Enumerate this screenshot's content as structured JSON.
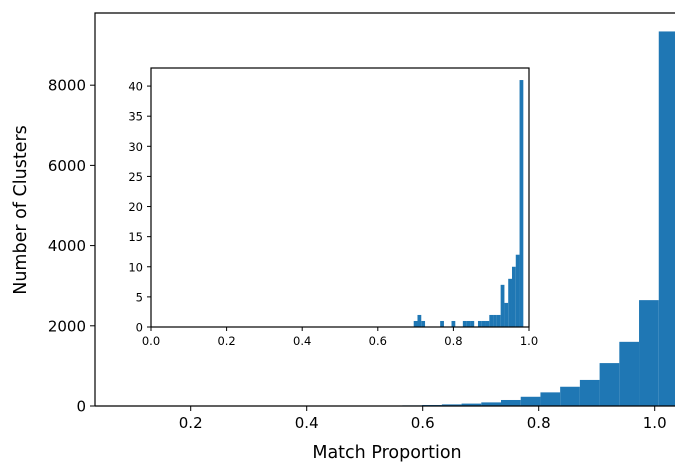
{
  "chart_data": [
    {
      "type": "bar",
      "title": "",
      "xlabel": "Match Proportion",
      "ylabel": "Number of Clusters",
      "xlim": [
        0.035,
        1.035
      ],
      "ylim": [
        0,
        9800
      ],
      "xticks": [
        0.2,
        0.4,
        0.6,
        0.8,
        1.0
      ],
      "xtick_labels": [
        "0.2",
        "0.4",
        "0.6",
        "0.8",
        "1.0"
      ],
      "yticks": [
        0,
        2000,
        4000,
        6000,
        8000
      ],
      "ytick_labels": [
        "0",
        "2000",
        "4000",
        "6000",
        "8000"
      ],
      "bar_color": "#1f77b4",
      "bins": [
        {
          "x0": 0.463,
          "x1": 0.497,
          "value": 3
        },
        {
          "x0": 0.497,
          "x1": 0.531,
          "value": 6
        },
        {
          "x0": 0.531,
          "x1": 0.565,
          "value": 10
        },
        {
          "x0": 0.565,
          "x1": 0.599,
          "value": 15
        },
        {
          "x0": 0.599,
          "x1": 0.633,
          "value": 25
        },
        {
          "x0": 0.633,
          "x1": 0.667,
          "value": 40
        },
        {
          "x0": 0.667,
          "x1": 0.701,
          "value": 60
        },
        {
          "x0": 0.701,
          "x1": 0.735,
          "value": 90
        },
        {
          "x0": 0.735,
          "x1": 0.769,
          "value": 150
        },
        {
          "x0": 0.769,
          "x1": 0.803,
          "value": 230
        },
        {
          "x0": 0.803,
          "x1": 0.837,
          "value": 340
        },
        {
          "x0": 0.837,
          "x1": 0.871,
          "value": 480
        },
        {
          "x0": 0.871,
          "x1": 0.905,
          "value": 650
        },
        {
          "x0": 0.905,
          "x1": 0.939,
          "value": 1070
        },
        {
          "x0": 0.939,
          "x1": 0.973,
          "value": 1600
        },
        {
          "x0": 0.973,
          "x1": 1.007,
          "value": 2640
        },
        {
          "x0": 1.007,
          "x1": 1.041,
          "value": 9340
        }
      ]
    },
    {
      "type": "bar",
      "title": "",
      "xlabel": "",
      "ylabel": "",
      "xlim": [
        0.0,
        1.0
      ],
      "ylim": [
        0,
        43
      ],
      "xticks": [
        0.0,
        0.2,
        0.4,
        0.6,
        0.8,
        1.0
      ],
      "xtick_labels": [
        "0.0",
        "0.2",
        "0.4",
        "0.6",
        "0.8",
        "1.0"
      ],
      "yticks": [
        0,
        5,
        10,
        15,
        20,
        25,
        30,
        35,
        40
      ],
      "ytick_labels": [
        "0",
        "5",
        "10",
        "15",
        "20",
        "25",
        "30",
        "35",
        "40"
      ],
      "bar_color": "#1f77b4",
      "bins": [
        {
          "x0": 0.695,
          "x1": 0.705,
          "value": 1
        },
        {
          "x0": 0.705,
          "x1": 0.715,
          "value": 2
        },
        {
          "x0": 0.715,
          "x1": 0.725,
          "value": 1
        },
        {
          "x0": 0.765,
          "x1": 0.775,
          "value": 1
        },
        {
          "x0": 0.795,
          "x1": 0.805,
          "value": 1
        },
        {
          "x0": 0.825,
          "x1": 0.835,
          "value": 1
        },
        {
          "x0": 0.835,
          "x1": 0.845,
          "value": 1
        },
        {
          "x0": 0.845,
          "x1": 0.855,
          "value": 1
        },
        {
          "x0": 0.865,
          "x1": 0.875,
          "value": 1
        },
        {
          "x0": 0.875,
          "x1": 0.885,
          "value": 1
        },
        {
          "x0": 0.885,
          "x1": 0.895,
          "value": 1
        },
        {
          "x0": 0.895,
          "x1": 0.905,
          "value": 2
        },
        {
          "x0": 0.905,
          "x1": 0.915,
          "value": 2
        },
        {
          "x0": 0.915,
          "x1": 0.925,
          "value": 2
        },
        {
          "x0": 0.925,
          "x1": 0.935,
          "value": 7
        },
        {
          "x0": 0.935,
          "x1": 0.945,
          "value": 4
        },
        {
          "x0": 0.945,
          "x1": 0.955,
          "value": 8
        },
        {
          "x0": 0.955,
          "x1": 0.965,
          "value": 10
        },
        {
          "x0": 0.965,
          "x1": 0.975,
          "value": 12
        },
        {
          "x0": 0.975,
          "x1": 0.985,
          "value": 41
        }
      ]
    }
  ]
}
